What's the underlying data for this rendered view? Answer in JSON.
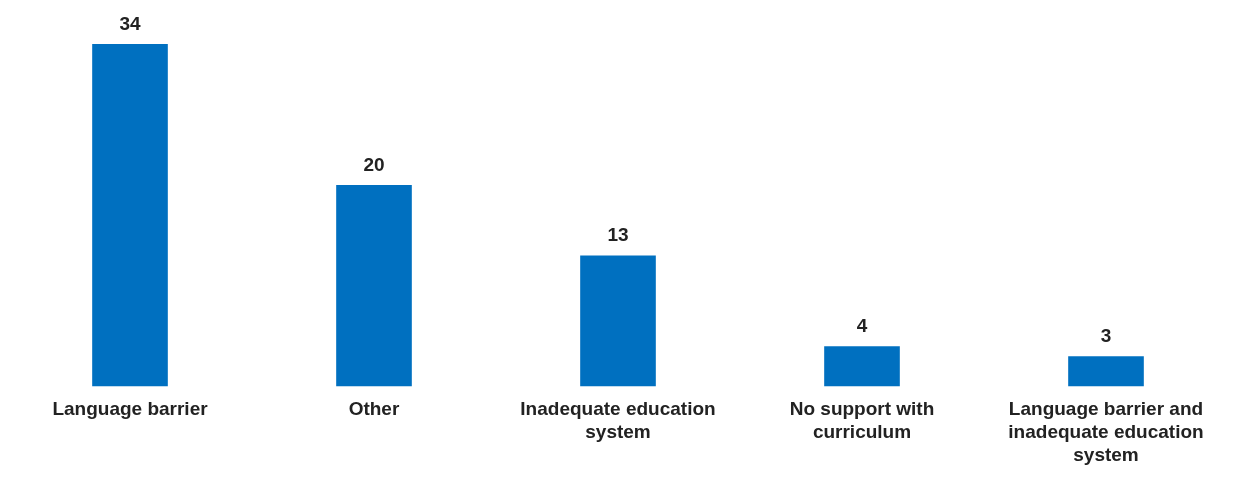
{
  "chart_data": {
    "type": "bar",
    "categories": [
      "Language barrier",
      "Other",
      "Inadequate education system",
      "No support with curriculum",
      "Language barrier and inadequate education system"
    ],
    "values": [
      34,
      20,
      13,
      4,
      3
    ],
    "color": "#0070c0",
    "data_labels": true
  }
}
